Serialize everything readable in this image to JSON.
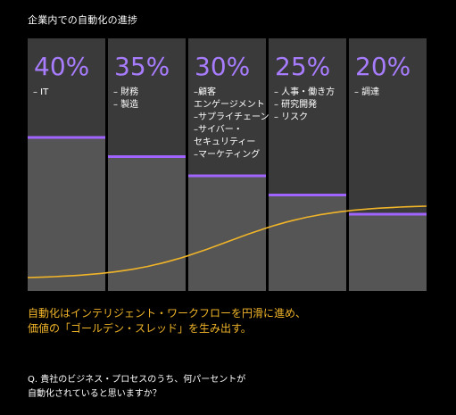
{
  "header": {
    "title": "企業内での自動化の進捗"
  },
  "colors": {
    "background": "#000000",
    "column_top": "#3a3a3a",
    "column_bottom": "#555555",
    "marker": "#a064ff",
    "percent_text": "#a87cff",
    "curve": "#f0b429",
    "caption": "#f0b429"
  },
  "chart_data": {
    "type": "bar",
    "title": "企業内での自動化の進捗",
    "ylim": [
      0,
      100
    ],
    "categories": [
      [
        "IT"
      ],
      [
        "財務",
        "製造"
      ],
      [
        "顧客エンゲージメント",
        "サプライチェーン",
        "サイバー・セキュリティー",
        "マーケティング"
      ],
      [
        "人事・働き方",
        "研究開発",
        "リスク"
      ],
      [
        "調達"
      ]
    ],
    "category_lines": [
      [
        "– IT"
      ],
      [
        "– 財務",
        "– 製造"
      ],
      [
        "–顧客",
        "  エンゲージメント",
        "–サプライチェーン",
        "–サイバー・",
        "  セキュリティー",
        "–マーケティング"
      ],
      [
        "– 人事・働き方",
        "– 研究開発",
        "– リスク"
      ],
      [
        "– 調達"
      ]
    ],
    "values": [
      40,
      35,
      30,
      25,
      20
    ],
    "labels": [
      "40%",
      "35%",
      "30%",
      "25%",
      "20%"
    ],
    "curve": "S-shaped adoption curve rising left to right"
  },
  "caption": {
    "line1": "自動化はインテリジェント・ワークフローを円滑に進め、",
    "line2": "価値の「ゴールデン・スレッド」を生み出す。"
  },
  "question": {
    "line1": "Q. 貴社のビジネス・プロセスのうち、何パーセントが",
    "line2": "自動化されていると思いますか？"
  }
}
